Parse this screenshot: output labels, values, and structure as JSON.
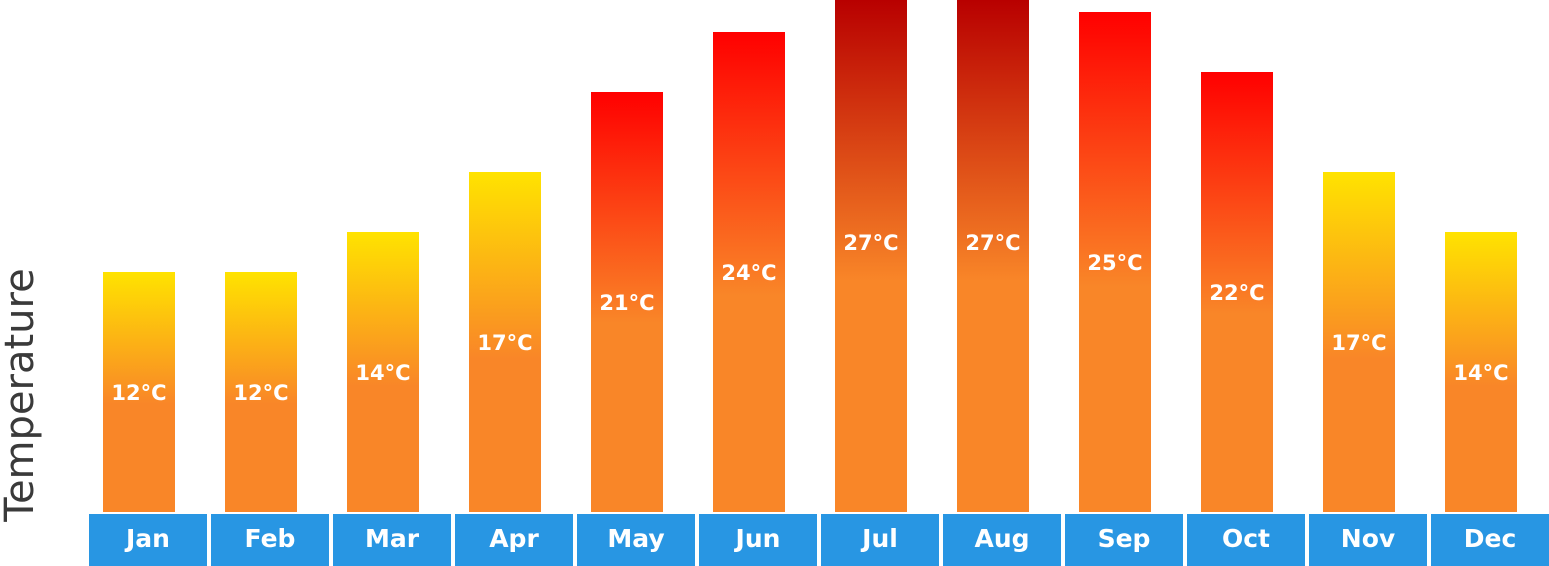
{
  "chart_data": {
    "type": "bar",
    "title": "",
    "xlabel": "",
    "ylabel": "Temperature",
    "categories": [
      "Jan",
      "Feb",
      "Mar",
      "Apr",
      "May",
      "Jun",
      "Jul",
      "Aug",
      "Sep",
      "Oct",
      "Nov",
      "Dec"
    ],
    "values": [
      12,
      12,
      14,
      17,
      21,
      24,
      27,
      27,
      25,
      22,
      17,
      14
    ],
    "data_labels": [
      "12°C",
      "12°C",
      "14°C",
      "17°C",
      "21°C",
      "24°C",
      "27°C",
      "27°C",
      "25°C",
      "22°C",
      "17°C",
      "14°C"
    ],
    "unit": "°C",
    "grid": false,
    "legend": "none",
    "colors": {
      "bar_bottom": "#F98628",
      "mild_top": "#FFE300",
      "warm_top": "#FF0000",
      "hot_top": "#B80000",
      "month_bar": "#2896E3",
      "axis_text": "#3a3a3a"
    }
  }
}
